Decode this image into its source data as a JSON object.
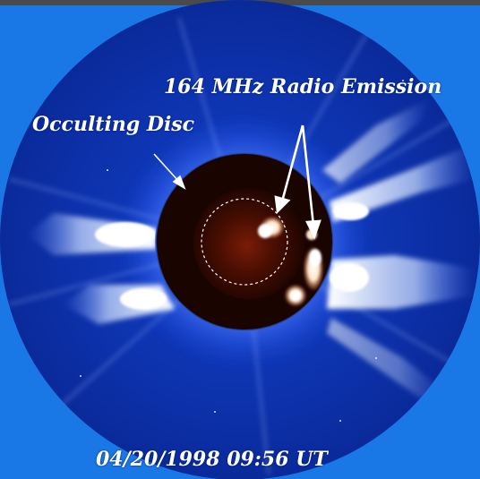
{
  "labels": {
    "radio_emission": "164 MHz Radio Emission",
    "occulting_disc": "Occulting Disc",
    "timestamp": "04/20/1998  09:56 UT"
  },
  "colors": {
    "background": "#1a78e6",
    "field": "#0a2fa8",
    "disc": "#1a0400",
    "sun_core": "#6a1606",
    "emission": "#fff0d8",
    "corona": "#ffffff"
  }
}
